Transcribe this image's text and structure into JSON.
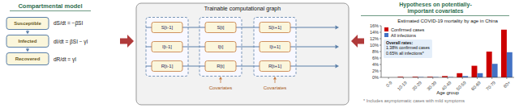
{
  "chart_data": {
    "type": "bar",
    "title": "Estimated COVID-19 mortality by age in China",
    "xlabel": "Age group",
    "categories": [
      "0-9",
      "10-19",
      "20-29",
      "30-39",
      "40-49",
      "50-59",
      "60-69",
      "70-79",
      "80+"
    ],
    "series": [
      {
        "name": "Confirmed cases",
        "color": "#cc0000",
        "values": [
          0.0,
          0.002,
          0.002,
          0.002,
          0.004,
          0.013,
          0.036,
          0.08,
          0.148
        ]
      },
      {
        "name": "All infections",
        "color": "#4472c4",
        "values": [
          0.0,
          0.0,
          0.001,
          0.001,
          0.001,
          0.004,
          0.013,
          0.042,
          0.078
        ]
      }
    ],
    "ylim": [
      0,
      0.16
    ],
    "yticks": [
      {
        "value": 0,
        "label": "0%"
      },
      {
        "value": 0.02,
        "label": "2%"
      },
      {
        "value": 0.04,
        "label": "4%"
      },
      {
        "value": 0.06,
        "label": "6%"
      },
      {
        "value": 0.08,
        "label": "8%"
      },
      {
        "value": 0.1,
        "label": "10%"
      },
      {
        "value": 0.12,
        "label": "12%"
      },
      {
        "value": 0.14,
        "label": "14%"
      },
      {
        "value": 0.16,
        "label": "16%"
      }
    ],
    "grid": false,
    "legend": "upper left",
    "annotations": [
      "Compartmental model",
      "Susceptible",
      "Infected",
      "Recovered",
      "dS/dt = −βSI",
      "dI/dt = βSI − γI",
      "dR/dt = γI",
      "Trainable computational graph",
      "S[t-1]",
      "I[t-1]",
      "R[t-1]",
      "S[t]",
      "I[t]",
      "R[t]",
      "S[t+1]",
      "I[t+1]",
      "R[t+1]",
      "Covariates",
      "Covariates",
      "Hypotheses on potentially-",
      "important covariates",
      "Overall rates:",
      "1.38% confirmed cases",
      "0.65% all infections*",
      "* Includes asymptomatic cases with mild symptoms"
    ]
  }
}
